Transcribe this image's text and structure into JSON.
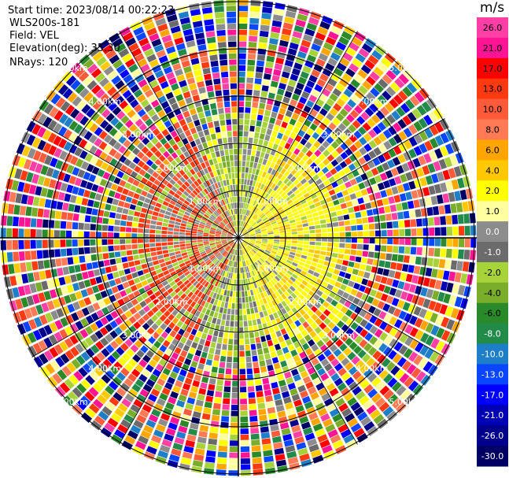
{
  "header": {
    "start_time": "Start time: 2023/08/14 00:22:23",
    "instrument": "WLS200s-181",
    "field": "Field: VEL",
    "elevation": "Elevation(deg): 35.30",
    "nrays": "NRays: 120"
  },
  "colorbar": {
    "unit": "m/s",
    "ticks": [
      "26.0",
      "21.0",
      "17.0",
      "13.0",
      "10.0",
      "8.0",
      "6.0",
      "4.0",
      "2.0",
      "1.0",
      "0.0",
      "-1.0",
      "-2.0",
      "-4.0",
      "-6.0",
      "-8.0",
      "-10.0",
      "-13.0",
      "-17.0",
      "-21.0",
      "-26.0",
      "-30.0"
    ],
    "colors": [
      "#ff3fa5",
      "#ff1493",
      "#ff0000",
      "#ff3a10",
      "#ff5a3a",
      "#ff7a55",
      "#ffa500",
      "#ffc800",
      "#ffff00",
      "#ffffa0",
      "#8c8c8c",
      "#6b6b6b",
      "#a8d23a",
      "#7aae2a",
      "#2a8a2a",
      "#228b4a",
      "#1e7ec8",
      "#0a46ff",
      "#0000ff",
      "#0000b4",
      "#00008c",
      "#000064"
    ]
  },
  "chart_data": {
    "type": "ppi",
    "field": "VEL",
    "units": "m/s",
    "elevation_deg": 35.3,
    "nrays": 120,
    "range_ring_labels": [
      "1.00km",
      "2.00km",
      "3.00km",
      "4.00km",
      "5.00km"
    ],
    "vmin": -30.0,
    "vmax": 26.0,
    "grid": true
  }
}
